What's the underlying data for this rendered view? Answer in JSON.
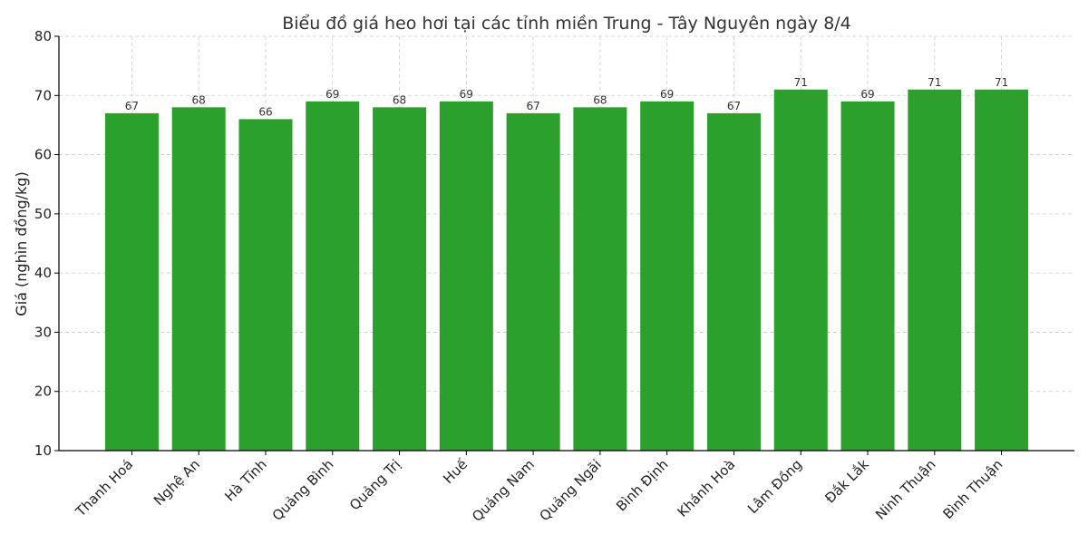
{
  "chart_data": {
    "type": "bar",
    "title": "Biểu đồ giá heo hơi tại các tỉnh miền Trung - Tây Nguyên ngày 8/4",
    "xlabel": "",
    "ylabel": "Giá (nghìn đồng/kg)",
    "ylim": [
      10,
      80
    ],
    "yticks": [
      10,
      20,
      30,
      40,
      50,
      60,
      70,
      80
    ],
    "grid": true,
    "bar_color": "#2ca02c",
    "categories": [
      "Thanh Hoá",
      "Nghệ An",
      "Hà Tĩnh",
      "Quảng Bình",
      "Quảng Trị",
      "Huế",
      "Quảng Nam",
      "Quảng Ngãi",
      "Bình Định",
      "Khánh Hoà",
      "Lâm Đồng",
      "Đắk Lắk",
      "Ninh Thuận",
      "Bình Thuận"
    ],
    "values": [
      67,
      68,
      66,
      69,
      68,
      69,
      67,
      68,
      69,
      67,
      71,
      69,
      71,
      71
    ]
  }
}
